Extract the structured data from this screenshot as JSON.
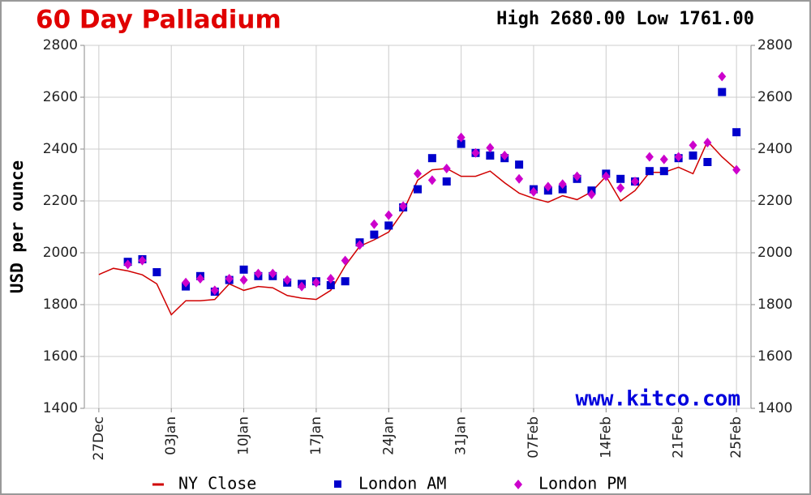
{
  "chart_data": {
    "type": "line",
    "title": "60 Day Palladium",
    "subtitle": "High 2680.00 Low 1761.00",
    "ylabel": "USD per ounce",
    "watermark": "www.kitco.com",
    "x": [
      0,
      1,
      2,
      3,
      4,
      5,
      6,
      7,
      8,
      9,
      10,
      11,
      12,
      13,
      14,
      15,
      16,
      17,
      18,
      19,
      20,
      21,
      22,
      23,
      24,
      25,
      26,
      27,
      28,
      29,
      30,
      31,
      32,
      33,
      34,
      35,
      36,
      37,
      38,
      39,
      40,
      41,
      42,
      43,
      44
    ],
    "xlim": [
      -1,
      45
    ],
    "xticks": [
      {
        "value": 0,
        "label": "27Dec"
      },
      {
        "value": 5,
        "label": "03Jan"
      },
      {
        "value": 10,
        "label": "10Jan"
      },
      {
        "value": 15,
        "label": "17Jan"
      },
      {
        "value": 20,
        "label": "24Jan"
      },
      {
        "value": 25,
        "label": "31Jan"
      },
      {
        "value": 30,
        "label": "07Feb"
      },
      {
        "value": 35,
        "label": "14Feb"
      },
      {
        "value": 40,
        "label": "21Feb"
      },
      {
        "value": 44,
        "label": "25Feb"
      }
    ],
    "ylim": [
      1400,
      2800
    ],
    "yticks": [
      1400,
      1600,
      1800,
      2000,
      2200,
      2400,
      2600,
      2800
    ],
    "grid": true,
    "series": [
      {
        "name": "NY Close",
        "color": "#d00000",
        "marker": "line",
        "values": [
          1916,
          1940,
          1930,
          1915,
          1880,
          1761,
          1815,
          1815,
          1820,
          1880,
          1855,
          1870,
          1865,
          1835,
          1825,
          1820,
          1855,
          1950,
          2025,
          2050,
          2080,
          2160,
          2280,
          2320,
          2325,
          2295,
          2295,
          2315,
          2270,
          2230,
          2210,
          2195,
          2220,
          2205,
          2235,
          2295,
          2200,
          2240,
          2310,
          2310,
          2330,
          2305,
          2430,
          2370,
          2320
        ]
      },
      {
        "name": "London AM",
        "color": "#0000cc",
        "marker": "square",
        "values": [
          null,
          null,
          1965,
          1975,
          1925,
          null,
          1870,
          1910,
          1850,
          1895,
          1935,
          1910,
          1910,
          1885,
          1880,
          1890,
          1875,
          1890,
          2040,
          2070,
          2105,
          2175,
          2245,
          2365,
          2275,
          2420,
          2385,
          2375,
          2365,
          2340,
          2245,
          2240,
          2245,
          2285,
          2240,
          2305,
          2285,
          2275,
          2315,
          2315,
          2365,
          2375,
          2350,
          2620,
          2465
        ]
      },
      {
        "name": "London PM",
        "color": "#cc00cc",
        "marker": "diamond",
        "values": [
          null,
          null,
          1955,
          1970,
          null,
          null,
          1885,
          1900,
          1855,
          1900,
          1895,
          1920,
          1920,
          1895,
          1870,
          1885,
          1900,
          1970,
          2030,
          2110,
          2145,
          2180,
          2305,
          2280,
          2325,
          2445,
          2385,
          2405,
          2375,
          2285,
          2235,
          2255,
          2265,
          2295,
          2225,
          2295,
          2250,
          2275,
          2370,
          2360,
          2370,
          2415,
          2425,
          2680,
          2320
        ]
      }
    ]
  }
}
